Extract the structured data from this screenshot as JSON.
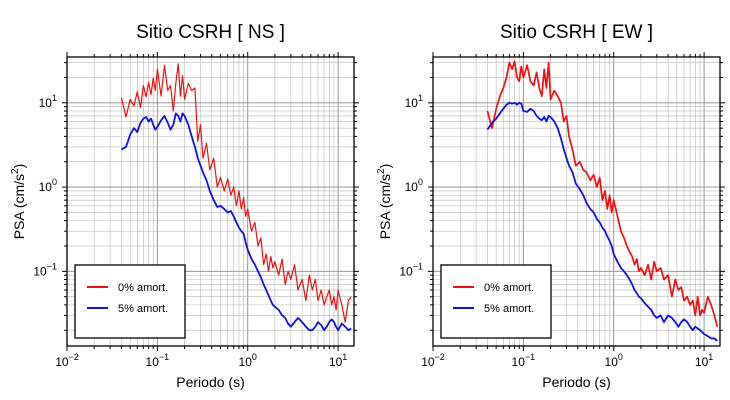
{
  "chart_data": [
    {
      "type": "line",
      "title": "Sitio CSRH [ NS ]",
      "xlabel": "Periodo (s)",
      "ylabel_main": "PSA (cm/s",
      "ylabel_sup": "2",
      "ylabel_close": ")",
      "xscale": "log",
      "yscale": "log",
      "xlim": [
        0.01,
        15
      ],
      "ylim": [
        0.013,
        35
      ],
      "grid": true,
      "legend_position": "bottom-left",
      "x_ticks": [
        {
          "value": 0.01,
          "base": "10",
          "exp": "−2"
        },
        {
          "value": 0.1,
          "base": "10",
          "exp": "−1"
        },
        {
          "value": 1,
          "base": "10",
          "exp": "0"
        },
        {
          "value": 10,
          "base": "10",
          "exp": "1"
        }
      ],
      "y_ticks": [
        {
          "value": 0.1,
          "base": "10",
          "exp": "−1"
        },
        {
          "value": 1,
          "base": "10",
          "exp": "0"
        },
        {
          "value": 10,
          "base": "10",
          "exp": "1"
        }
      ],
      "series": [
        {
          "name": "0% amort.",
          "color": "#ee1111",
          "x": [
            0.04,
            0.045,
            0.05,
            0.055,
            0.06,
            0.065,
            0.07,
            0.075,
            0.08,
            0.085,
            0.09,
            0.095,
            0.1,
            0.11,
            0.12,
            0.13,
            0.14,
            0.15,
            0.16,
            0.17,
            0.18,
            0.19,
            0.2,
            0.22,
            0.24,
            0.26,
            0.28,
            0.3,
            0.32,
            0.35,
            0.38,
            0.42,
            0.46,
            0.5,
            0.55,
            0.6,
            0.65,
            0.7,
            0.75,
            0.8,
            0.85,
            0.9,
            0.95,
            1.0,
            1.1,
            1.2,
            1.3,
            1.4,
            1.5,
            1.6,
            1.7,
            1.8,
            1.9,
            2.0,
            2.2,
            2.4,
            2.6,
            2.8,
            3.0,
            3.3,
            3.6,
            4.0,
            4.4,
            4.8,
            5.2,
            5.6,
            6.0,
            6.5,
            7.0,
            7.5,
            8.0,
            8.5,
            9.0,
            9.5,
            10,
            11,
            12,
            13,
            14
          ],
          "values": [
            11.5,
            6.8,
            11,
            9.2,
            13.5,
            8.8,
            16,
            11.8,
            17.5,
            12.5,
            19.5,
            14,
            25,
            12,
            28,
            14,
            16,
            8,
            17,
            29,
            12,
            21,
            11,
            17,
            14,
            15,
            3.5,
            5.5,
            2.2,
            3.3,
            1.6,
            2.2,
            1.0,
            1.3,
            0.9,
            1.25,
            0.8,
            1.0,
            0.6,
            0.9,
            0.55,
            0.75,
            0.45,
            0.55,
            0.3,
            0.38,
            0.2,
            0.25,
            0.12,
            0.16,
            0.1,
            0.15,
            0.11,
            0.13,
            0.09,
            0.14,
            0.07,
            0.1,
            0.08,
            0.12,
            0.06,
            0.08,
            0.045,
            0.09,
            0.06,
            0.08,
            0.045,
            0.06,
            0.04,
            0.05,
            0.06,
            0.04,
            0.05,
            0.035,
            0.06,
            0.04,
            0.025,
            0.045,
            0.05
          ]
        },
        {
          "name": "5% amort.",
          "color": "#1111dd",
          "x": [
            0.04,
            0.045,
            0.05,
            0.055,
            0.06,
            0.065,
            0.07,
            0.075,
            0.08,
            0.085,
            0.09,
            0.095,
            0.1,
            0.11,
            0.12,
            0.13,
            0.14,
            0.15,
            0.16,
            0.17,
            0.18,
            0.19,
            0.2,
            0.22,
            0.24,
            0.26,
            0.28,
            0.3,
            0.32,
            0.35,
            0.38,
            0.42,
            0.46,
            0.5,
            0.55,
            0.6,
            0.65,
            0.7,
            0.75,
            0.8,
            0.85,
            0.9,
            0.95,
            1.0,
            1.1,
            1.2,
            1.3,
            1.4,
            1.5,
            1.6,
            1.7,
            1.8,
            1.9,
            2.0,
            2.2,
            2.4,
            2.6,
            2.8,
            3.0,
            3.3,
            3.6,
            4.0,
            4.4,
            4.8,
            5.2,
            5.6,
            6.0,
            6.5,
            7.0,
            7.5,
            8.0,
            8.5,
            9.0,
            9.5,
            10,
            11,
            12,
            13,
            14
          ],
          "values": [
            2.8,
            3.0,
            4.2,
            5.0,
            4.5,
            5.8,
            6.5,
            6.8,
            6.0,
            6.5,
            5.5,
            4.8,
            5.2,
            6.2,
            7.0,
            5.8,
            4.8,
            5.5,
            7.5,
            7.0,
            6.0,
            7.5,
            7.0,
            5.5,
            4.0,
            3.0,
            2.2,
            1.8,
            1.5,
            1.2,
            0.9,
            0.7,
            0.58,
            0.6,
            0.55,
            0.5,
            0.52,
            0.45,
            0.38,
            0.33,
            0.3,
            0.28,
            0.22,
            0.18,
            0.14,
            0.12,
            0.1,
            0.085,
            0.07,
            0.06,
            0.052,
            0.045,
            0.04,
            0.038,
            0.035,
            0.03,
            0.028,
            0.024,
            0.022,
            0.025,
            0.028,
            0.025,
            0.022,
            0.02,
            0.02,
            0.022,
            0.025,
            0.023,
            0.02,
            0.022,
            0.025,
            0.027,
            0.025,
            0.022,
            0.02,
            0.024,
            0.022,
            0.02,
            0.021
          ]
        }
      ]
    },
    {
      "type": "line",
      "title": "Sitio CSRH [ EW ]",
      "xlabel": "Periodo (s)",
      "ylabel_main": "PSA (cm/s",
      "ylabel_sup": "2",
      "ylabel_close": ")",
      "xscale": "log",
      "yscale": "log",
      "xlim": [
        0.01,
        15
      ],
      "ylim": [
        0.013,
        35
      ],
      "grid": true,
      "legend_position": "bottom-left",
      "x_ticks": [
        {
          "value": 0.01,
          "base": "10",
          "exp": "−2"
        },
        {
          "value": 0.1,
          "base": "10",
          "exp": "−1"
        },
        {
          "value": 1,
          "base": "10",
          "exp": "0"
        },
        {
          "value": 10,
          "base": "10",
          "exp": "1"
        }
      ],
      "y_ticks": [
        {
          "value": 0.1,
          "base": "10",
          "exp": "−1"
        },
        {
          "value": 1,
          "base": "10",
          "exp": "0"
        },
        {
          "value": 10,
          "base": "10",
          "exp": "1"
        }
      ],
      "series": [
        {
          "name": "0% amort.",
          "color": "#ee1111",
          "x": [
            0.04,
            0.045,
            0.05,
            0.055,
            0.06,
            0.065,
            0.07,
            0.075,
            0.08,
            0.085,
            0.09,
            0.095,
            0.1,
            0.11,
            0.12,
            0.13,
            0.14,
            0.15,
            0.16,
            0.17,
            0.18,
            0.19,
            0.2,
            0.22,
            0.24,
            0.26,
            0.28,
            0.3,
            0.32,
            0.35,
            0.38,
            0.42,
            0.46,
            0.5,
            0.55,
            0.6,
            0.65,
            0.7,
            0.75,
            0.8,
            0.85,
            0.9,
            0.95,
            1.0,
            1.1,
            1.2,
            1.3,
            1.4,
            1.5,
            1.6,
            1.7,
            1.8,
            1.9,
            2.0,
            2.2,
            2.4,
            2.6,
            2.8,
            3.0,
            3.3,
            3.6,
            4.0,
            4.4,
            4.8,
            5.2,
            5.6,
            6.0,
            6.5,
            7.0,
            7.5,
            8.0,
            8.5,
            9.0,
            9.5,
            10,
            11,
            12,
            13,
            14
          ],
          "values": [
            8.0,
            5.0,
            8.5,
            12,
            15,
            20,
            30,
            25,
            31,
            20,
            18,
            27,
            20,
            28,
            18,
            16,
            23,
            15,
            12,
            25,
            15,
            30,
            11,
            14,
            12,
            10,
            6.0,
            7.0,
            4.0,
            2.8,
            1.8,
            2.0,
            1.6,
            1.5,
            1.2,
            1.4,
            1.0,
            1.3,
            0.7,
            0.9,
            0.55,
            0.8,
            0.5,
            0.7,
            0.45,
            0.3,
            0.25,
            0.2,
            0.17,
            0.15,
            0.12,
            0.14,
            0.1,
            0.11,
            0.09,
            0.12,
            0.08,
            0.13,
            0.1,
            0.11,
            0.08,
            0.09,
            0.05,
            0.08,
            0.06,
            0.065,
            0.045,
            0.05,
            0.04,
            0.045,
            0.03,
            0.05,
            0.03,
            0.035,
            0.032,
            0.05,
            0.04,
            0.03,
            0.022
          ]
        },
        {
          "name": "5% amort.",
          "color": "#1111dd",
          "x": [
            0.04,
            0.045,
            0.05,
            0.055,
            0.06,
            0.065,
            0.07,
            0.075,
            0.08,
            0.085,
            0.09,
            0.095,
            0.1,
            0.11,
            0.12,
            0.13,
            0.14,
            0.15,
            0.16,
            0.17,
            0.18,
            0.19,
            0.2,
            0.22,
            0.24,
            0.26,
            0.28,
            0.3,
            0.32,
            0.35,
            0.38,
            0.42,
            0.46,
            0.5,
            0.55,
            0.6,
            0.65,
            0.7,
            0.75,
            0.8,
            0.85,
            0.9,
            0.95,
            1.0,
            1.1,
            1.2,
            1.3,
            1.4,
            1.5,
            1.6,
            1.7,
            1.8,
            1.9,
            2.0,
            2.2,
            2.4,
            2.6,
            2.8,
            3.0,
            3.3,
            3.6,
            4.0,
            4.4,
            4.8,
            5.2,
            5.6,
            6.0,
            6.5,
            7.0,
            7.5,
            8.0,
            8.5,
            9.0,
            9.5,
            10,
            11,
            12,
            13,
            14
          ],
          "values": [
            4.8,
            5.8,
            6.5,
            7.5,
            8.5,
            9.5,
            10,
            9.8,
            10,
            9.5,
            10,
            9.8,
            8.0,
            7.8,
            8.5,
            8.0,
            7.0,
            6.5,
            6.2,
            6.8,
            6.0,
            7.0,
            6.8,
            6.0,
            5.0,
            3.8,
            2.8,
            2.2,
            1.8,
            1.5,
            1.1,
            0.95,
            0.8,
            0.65,
            0.55,
            0.5,
            0.42,
            0.38,
            0.33,
            0.3,
            0.26,
            0.23,
            0.2,
            0.16,
            0.13,
            0.11,
            0.1,
            0.09,
            0.08,
            0.07,
            0.06,
            0.055,
            0.05,
            0.048,
            0.042,
            0.038,
            0.035,
            0.03,
            0.028,
            0.03,
            0.025,
            0.03,
            0.028,
            0.025,
            0.022,
            0.025,
            0.027,
            0.025,
            0.022,
            0.02,
            0.022,
            0.021,
            0.02,
            0.019,
            0.018,
            0.017,
            0.016,
            0.016,
            0.015
          ]
        }
      ]
    }
  ]
}
